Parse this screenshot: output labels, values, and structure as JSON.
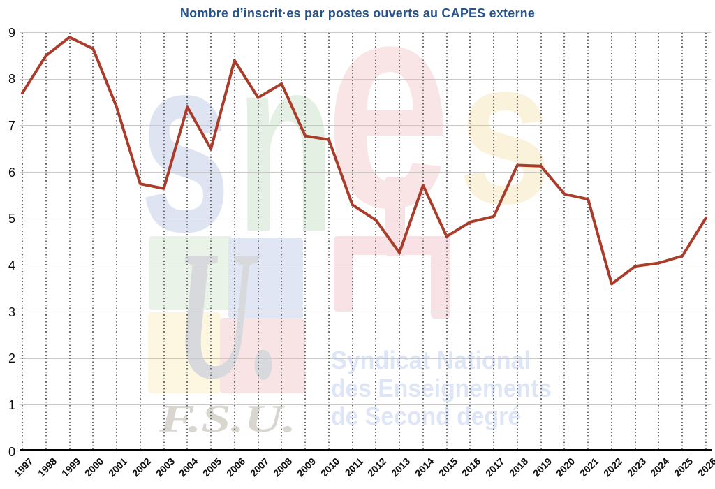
{
  "title": "Nombre d’inscrit·es par postes ouverts au CAPES externe",
  "colors": {
    "title": "#27548e",
    "line": "#a93c2a",
    "h_grid": "#c9c9c9",
    "v_grid": "#6f6f6f",
    "axis": "#000000",
    "tick_text": "#0d0d0d"
  },
  "chart_data": {
    "type": "line",
    "title": "Nombre d’inscrit·es par postes ouverts au CAPES externe",
    "x": [
      1997,
      1998,
      1999,
      2000,
      2001,
      2002,
      2003,
      2004,
      2005,
      2006,
      2007,
      2008,
      2009,
      2010,
      2011,
      2012,
      2013,
      2014,
      2015,
      2016,
      2017,
      2018,
      2019,
      2020,
      2021,
      2022,
      2023,
      2024,
      2025,
      2026
    ],
    "series": [
      {
        "name": "inscrit·es par poste ouvert",
        "color": "#a93c2a",
        "values": [
          7.7,
          8.5,
          8.9,
          8.65,
          7.4,
          5.75,
          5.65,
          7.4,
          6.5,
          8.4,
          7.6,
          7.9,
          6.78,
          6.7,
          5.3,
          4.97,
          4.27,
          5.72,
          4.62,
          4.93,
          5.05,
          6.15,
          6.13,
          5.53,
          5.42,
          3.6,
          3.98,
          4.05,
          4.2,
          5.02
        ]
      }
    ],
    "xlabel": "",
    "ylabel": "",
    "ylim": [
      0,
      9
    ],
    "yticks": [
      0,
      1,
      2,
      3,
      4,
      5,
      6,
      7,
      8,
      9
    ],
    "grid": {
      "horizontal": "solid",
      "vertical": "dotted"
    },
    "legend": "none"
  },
  "watermark": {
    "logo_letters": [
      {
        "char": "s",
        "color": "#dfe4f2"
      },
      {
        "char": "n",
        "color": "#e4f0e3"
      },
      {
        "char": "e",
        "color": "#f9e4e6"
      },
      {
        "char": "s",
        "color": "#fbf2dc"
      }
    ],
    "symbol_color": "#f8e2e5",
    "blocks": [
      "#e9f3e7",
      "#e1e6f4",
      "#fdf6e1",
      "#f8e3e5"
    ],
    "u_text": "U.",
    "u_color": "#d7d9dc",
    "fsu_text": "F.S.U.",
    "fsu_color": "#d9d6cf",
    "tagline": [
      "Syndicat National",
      "des Enseignements",
      "de Second degré"
    ],
    "tagline_color": "#dde5f6"
  }
}
